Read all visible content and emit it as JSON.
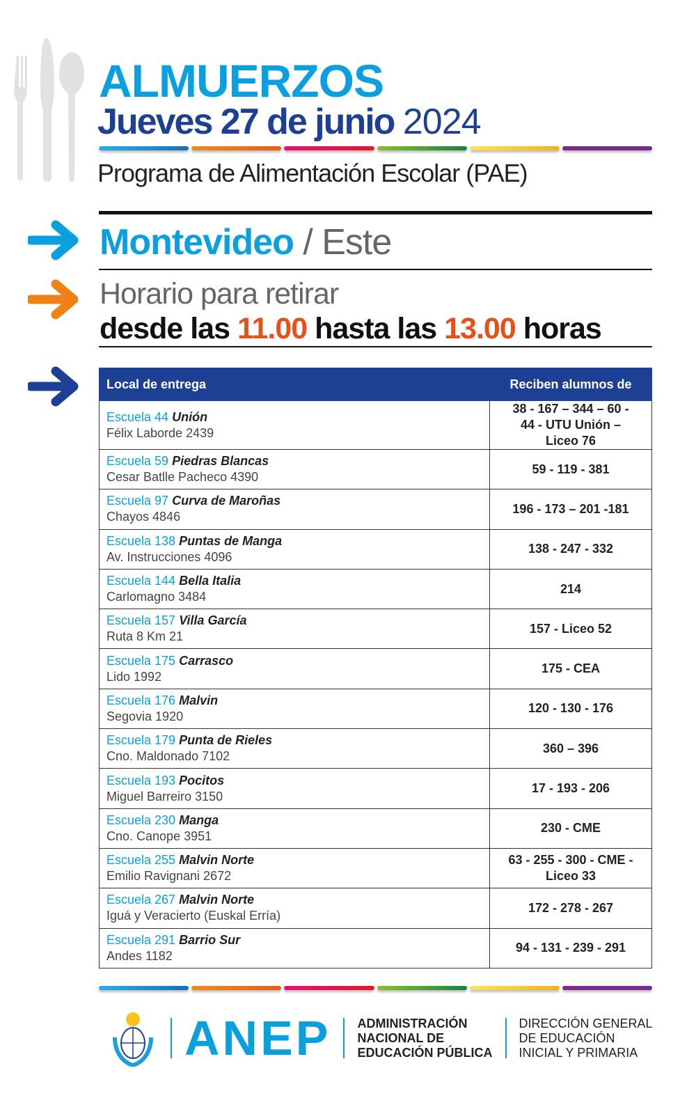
{
  "header": {
    "title": "ALMUERZOS",
    "date_bold": "Jueves 27 de junio",
    "year": "2024",
    "program": "Programa de Alimentación Escolar (PAE)"
  },
  "location": {
    "city": "Montevideo",
    "separator": " / ",
    "zone": "Este"
  },
  "schedule": {
    "label": "Horario para retirar",
    "prefix": "desde las ",
    "start": "11.00",
    "middle": " hasta las ",
    "end": "13.00",
    "suffix": " horas"
  },
  "colors": {
    "cyan": "#0aa0e0",
    "navy": "#1d3f94",
    "orange": "#e8501a",
    "bars": [
      "#1aa0dc",
      "#ee7318",
      "#e0156a",
      "#4aa02c",
      "#f7cf2e",
      "#7a2a8c"
    ]
  },
  "table": {
    "headers": [
      "Local de entrega",
      "Reciben alumnos  de"
    ],
    "rows": [
      {
        "school": "Escuela 44",
        "name": "Unión",
        "address": "Félix Laborde 2439",
        "students": "38 - 167 – 344 – 60 - 44 - UTU Unión – Liceo 76"
      },
      {
        "school": "Escuela 59",
        "name": "Piedras Blancas",
        "address": "Cesar Batlle Pacheco 4390",
        "students": "59 - 119 - 381"
      },
      {
        "school": "Escuela 97",
        "name": "Curva de Maroñas",
        "address": "Chayos 4846",
        "students": "196 - 173 – 201 -181"
      },
      {
        "school": "Escuela 138",
        "name": "Puntas de Manga",
        "address": "Av. Instrucciones 4096",
        "students": "138 - 247 - 332"
      },
      {
        "school": "Escuela 144",
        "name": "Bella Italia",
        "address": "Carlomagno 3484",
        "students": "214"
      },
      {
        "school": "Escuela 157",
        "name": "Villa García",
        "address": "Ruta 8 Km 21",
        "students": "157 - Liceo 52"
      },
      {
        "school": "Escuela 175",
        "name": "Carrasco",
        "address": "Lido 1992",
        "students": "175 - CEA"
      },
      {
        "school": "Escuela 176",
        "name": "Malvin",
        "address": "Segovia 1920",
        "students": "120 - 130 - 176"
      },
      {
        "school": "Escuela 179",
        "name": "Punta de Rieles",
        "address": "Cno. Maldonado 7102",
        "students": "360 – 396"
      },
      {
        "school": "Escuela 193",
        "name": "Pocitos",
        "address": "Miguel Barreiro 3150",
        "students": "17 - 193 - 206"
      },
      {
        "school": "Escuela 230",
        "name": "Manga",
        "address": "Cno. Canope 3951",
        "students": "230 - CME"
      },
      {
        "school": "Escuela 255",
        "name": "Malvin Norte",
        "address": "Emilio Ravignani 2672",
        "students": "63 - 255 - 300 - CME - Liceo 33"
      },
      {
        "school": "Escuela 267",
        "name": "Malvin Norte",
        "address": "Iguá y Veracierto (Euskal Erría)",
        "students": "172 - 278 - 267"
      },
      {
        "school": "Escuela 291",
        "name": "Barrio Sur",
        "address": "Andes 1182",
        "students": "94 - 131 - 239 - 291"
      }
    ]
  },
  "footer": {
    "logo": "ANEP",
    "org": [
      "ADMINISTRACIÓN",
      "NACIONAL DE",
      "EDUCACIÓN PÚBLICA"
    ],
    "dept": [
      "DIRECCIÓN GENERAL",
      "DE EDUCACIÓN",
      "INICIAL Y PRIMARIA"
    ]
  }
}
